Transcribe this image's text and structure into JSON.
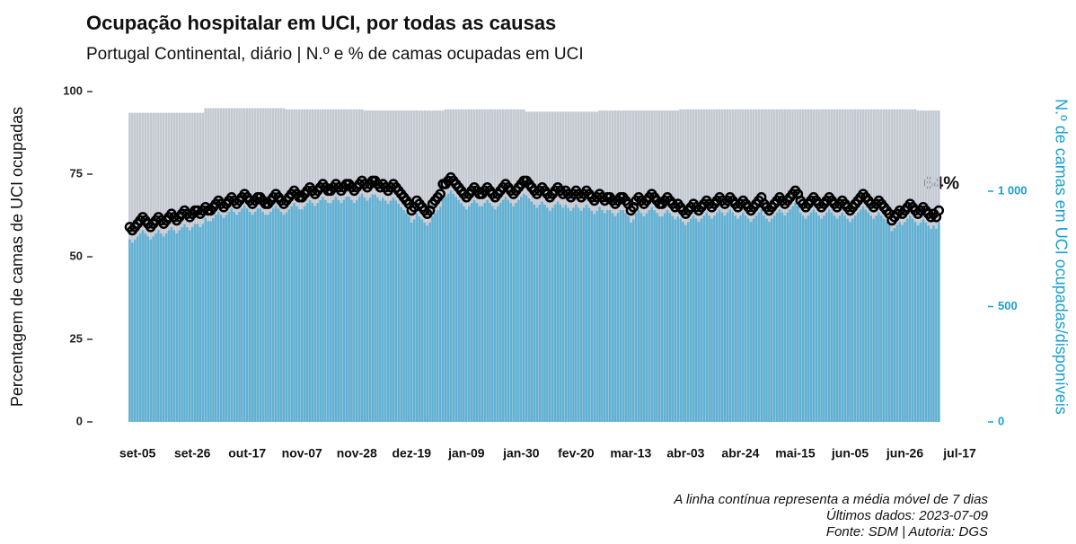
{
  "chart_data": {
    "type": "bar",
    "title": "Ocupação hospitalar em UCI, por todas as causas",
    "subtitle": "Portugal Continental, diário | N.º e % de camas ocupadas em UCI",
    "y_label": "Percentagem de camas de UCI ocupadas",
    "y2_label": "N.º de camas em UCI ocupadas/disponíveis",
    "annotation": "64%",
    "notes": [
      "A linha contínua representa a média móvel de 7 dias",
      "Últimos dados: 2023-07-09",
      "Fonte: SDM | Autoria: DGS"
    ],
    "ylim": [
      0,
      100
    ],
    "yticks": [
      0,
      25,
      50,
      75,
      100
    ],
    "y2lim": [
      0,
      1432
    ],
    "y2ticks": [
      0,
      500,
      {
        "value": 1000,
        "label": "1 000"
      }
    ],
    "categories": [
      null,
      null,
      null,
      "set-05",
      null,
      null,
      null,
      null,
      null,
      null,
      null,
      null,
      null,
      null,
      null,
      null,
      null,
      null,
      null,
      null,
      null,
      null,
      null,
      null,
      "set-26",
      null,
      null,
      null,
      null,
      null,
      null,
      null,
      null,
      null,
      null,
      null,
      null,
      null,
      null,
      null,
      null,
      null,
      null,
      null,
      null,
      "out-17",
      null,
      null,
      null,
      null,
      null,
      null,
      null,
      null,
      null,
      null,
      null,
      null,
      null,
      null,
      null,
      null,
      null,
      null,
      null,
      null,
      "nov-07",
      null,
      null,
      null,
      null,
      null,
      null,
      null,
      null,
      null,
      null,
      null,
      null,
      null,
      null,
      null,
      null,
      null,
      null,
      null,
      null,
      "nov-28",
      null,
      null,
      null,
      null,
      null,
      null,
      null,
      null,
      null,
      null,
      null,
      null,
      null,
      null,
      null,
      null,
      null,
      null,
      null,
      null,
      "dez-19",
      null,
      null,
      null,
      null,
      null,
      null,
      null,
      null,
      null,
      null,
      null,
      null,
      null,
      null,
      null,
      null,
      null,
      null,
      null,
      null,
      "jan-09",
      null,
      null,
      null,
      null,
      null,
      null,
      null,
      null,
      null,
      null,
      null,
      null,
      null,
      null,
      null,
      null,
      null,
      null,
      null,
      null,
      "jan-30",
      null,
      null,
      null,
      null,
      null,
      null,
      null,
      null,
      null,
      null,
      null,
      null,
      null,
      null,
      null,
      null,
      null,
      null,
      null,
      null,
      "fev-20",
      null,
      null,
      null,
      null,
      null,
      null,
      null,
      null,
      null,
      null,
      null,
      null,
      null,
      null,
      null,
      null,
      null,
      null,
      null,
      null,
      "mar-13",
      null,
      null,
      null,
      null,
      null,
      null,
      null,
      null,
      null,
      null,
      null,
      null,
      null,
      null,
      null,
      null,
      null,
      null,
      null,
      null,
      "abr-03",
      null,
      null,
      null,
      null,
      null,
      null,
      null,
      null,
      null,
      null,
      null,
      null,
      null,
      null,
      null,
      null,
      null,
      null,
      null,
      null,
      "abr-24",
      null,
      null,
      null,
      null,
      null,
      null,
      null,
      null,
      null,
      null,
      null,
      null,
      null,
      null,
      null,
      null,
      null,
      null,
      null,
      null,
      "mai-15",
      null,
      null,
      null,
      null,
      null,
      null,
      null,
      null,
      null,
      null,
      null,
      null,
      null,
      null,
      null,
      null,
      null,
      null,
      null,
      null,
      "jun-05",
      null,
      null,
      null,
      null,
      null,
      null,
      null,
      null,
      null,
      null,
      null,
      null,
      null,
      null,
      null,
      null,
      null,
      null,
      null,
      null,
      "jun-26",
      null,
      null,
      null,
      null,
      null,
      null,
      null,
      null,
      null,
      null,
      null,
      null,
      null,
      null,
      null,
      null,
      null,
      null,
      null,
      null,
      "jul-17"
    ],
    "series": [
      {
        "axis": "y2",
        "color": "#c4c8d1",
        "values": [
          1340,
          1340,
          1340,
          1340,
          1340,
          1340,
          1340,
          1340,
          1340,
          1340,
          1340,
          1340,
          1340,
          1340,
          1340,
          1340,
          1340,
          1340,
          1340,
          1340,
          1340,
          1340,
          1340,
          1340,
          1340,
          1340,
          1340,
          1340,
          1340,
          1360,
          1360,
          1360,
          1360,
          1360,
          1360,
          1360,
          1360,
          1360,
          1360,
          1360,
          1360,
          1360,
          1360,
          1360,
          1360,
          1360,
          1360,
          1360,
          1360,
          1360,
          1360,
          1360,
          1360,
          1360,
          1360,
          1360,
          1360,
          1360,
          1360,
          1360,
          1355,
          1355,
          1355,
          1355,
          1355,
          1355,
          1355,
          1355,
          1355,
          1355,
          1355,
          1355,
          1355,
          1355,
          1355,
          1355,
          1355,
          1355,
          1355,
          1355,
          1355,
          1355,
          1355,
          1355,
          1355,
          1355,
          1355,
          1355,
          1355,
          1355,
          1350,
          1350,
          1350,
          1350,
          1350,
          1350,
          1350,
          1350,
          1350,
          1350,
          1350,
          1350,
          1350,
          1350,
          1350,
          1350,
          1350,
          1350,
          1350,
          1350,
          1350,
          1350,
          1350,
          1350,
          1350,
          1350,
          1350,
          1350,
          1350,
          1350,
          1350,
          1355,
          1355,
          1355,
          1355,
          1355,
          1355,
          1355,
          1355,
          1355,
          1355,
          1355,
          1355,
          1355,
          1355,
          1355,
          1355,
          1355,
          1355,
          1355,
          1355,
          1355,
          1355,
          1355,
          1355,
          1355,
          1355,
          1355,
          1355,
          1355,
          1355,
          1355,
          1345,
          1345,
          1345,
          1345,
          1345,
          1345,
          1345,
          1345,
          1345,
          1345,
          1345,
          1345,
          1345,
          1345,
          1345,
          1345,
          1345,
          1345,
          1345,
          1345,
          1345,
          1345,
          1345,
          1345,
          1345,
          1345,
          1345,
          1345,
          1350,
          1350,
          1350,
          1350,
          1350,
          1350,
          1350,
          1350,
          1350,
          1350,
          1350,
          1350,
          1350,
          1350,
          1350,
          1350,
          1350,
          1350,
          1350,
          1350,
          1350,
          1350,
          1350,
          1350,
          1350,
          1350,
          1350,
          1350,
          1350,
          1350,
          1350,
          1355,
          1355,
          1355,
          1355,
          1355,
          1355,
          1355,
          1355,
          1355,
          1355,
          1355,
          1355,
          1355,
          1355,
          1355,
          1355,
          1355,
          1355,
          1355,
          1355,
          1355,
          1355,
          1355,
          1355,
          1355,
          1355,
          1355,
          1355,
          1355,
          1355,
          1355,
          1355,
          1355,
          1355,
          1355,
          1355,
          1355,
          1355,
          1355,
          1355,
          1355,
          1355,
          1355,
          1355,
          1355,
          1355,
          1355,
          1355,
          1355,
          1355,
          1355,
          1355,
          1355,
          1355,
          1355,
          1355,
          1355,
          1355,
          1355,
          1355,
          1355,
          1355,
          1355,
          1355,
          1355,
          1355,
          1355,
          1355,
          1355,
          1355,
          1355,
          1355,
          1355,
          1355,
          1355,
          1355,
          1355,
          1355,
          1355,
          1355,
          1355,
          1355,
          1355,
          1355,
          1355,
          1355,
          1355,
          1355,
          1355,
          1355,
          1355,
          1350,
          1350,
          1350,
          1350,
          1350,
          1350,
          1350,
          1350,
          1350,
          null,
          null,
          null,
          null,
          null,
          null,
          null,
          null
        ]
      },
      {
        "axis": "y2",
        "color": "#62b1d3",
        "values": [
          791,
          777,
          791,
          804,
          817,
          831,
          817,
          804,
          791,
          804,
          817,
          831,
          817,
          804,
          817,
          831,
          844,
          831,
          817,
          831,
          844,
          858,
          844,
          831,
          844,
          858,
          858,
          844,
          858,
          884,
          870,
          870,
          884,
          898,
          911,
          898,
          884,
          898,
          911,
          925,
          911,
          898,
          911,
          925,
          938,
          925,
          911,
          898,
          911,
          925,
          925,
          911,
          898,
          898,
          911,
          925,
          938,
          925,
          911,
          898,
          908,
          921,
          935,
          949,
          935,
          921,
          921,
          935,
          949,
          962,
          949,
          935,
          949,
          962,
          976,
          962,
          949,
          949,
          962,
          976,
          962,
          949,
          962,
          976,
          976,
          962,
          949,
          962,
          976,
          989,
          972,
          959,
          972,
          986,
          986,
          972,
          959,
          972,
          959,
          945,
          959,
          972,
          959,
          945,
          932,
          918,
          905,
          891,
          864,
          878,
          905,
          891,
          878,
          864,
          851,
          864,
          891,
          905,
          918,
          932,
          972,
          976,
          989,
          1003,
          989,
          976,
          962,
          949,
          935,
          921,
          935,
          949,
          962,
          949,
          935,
          935,
          949,
          962,
          949,
          935,
          921,
          935,
          949,
          962,
          976,
          962,
          949,
          935,
          949,
          962,
          976,
          989,
          982,
          968,
          955,
          942,
          928,
          942,
          955,
          942,
          928,
          915,
          928,
          942,
          955,
          942,
          928,
          942,
          928,
          915,
          928,
          942,
          928,
          915,
          928,
          942,
          928,
          915,
          901,
          915,
          932,
          918,
          905,
          918,
          918,
          905,
          891,
          905,
          918,
          918,
          905,
          891,
          864,
          878,
          905,
          918,
          905,
          891,
          905,
          918,
          932,
          918,
          905,
          891,
          891,
          905,
          918,
          905,
          891,
          878,
          891,
          881,
          867,
          854,
          867,
          881,
          894,
          881,
          867,
          881,
          894,
          908,
          894,
          881,
          894,
          908,
          921,
          908,
          894,
          908,
          921,
          908,
          894,
          881,
          894,
          908,
          894,
          881,
          867,
          881,
          894,
          908,
          921,
          894,
          881,
          867,
          881,
          894,
          908,
          921,
          908,
          894,
          908,
          921,
          935,
          949,
          935,
          908,
          894,
          881,
          894,
          908,
          921,
          908,
          894,
          881,
          894,
          908,
          921,
          908,
          894,
          881,
          894,
          908,
          894,
          881,
          867,
          881,
          894,
          908,
          921,
          935,
          921,
          908,
          894,
          881,
          894,
          908,
          894,
          881,
          867,
          854,
          827,
          840,
          854,
          867,
          854,
          867,
          881,
          894,
          881,
          867,
          851,
          864,
          878,
          864,
          851,
          837,
          851,
          837,
          864,
          null,
          null,
          null,
          null,
          null,
          null,
          null,
          null
        ]
      },
      {
        "type": "scatter",
        "color": "#000000",
        "values": [
          59,
          58,
          59,
          60,
          61,
          62,
          61,
          60,
          59,
          60,
          61,
          62,
          61,
          60,
          61,
          62,
          63,
          62,
          61,
          62,
          63,
          64,
          63,
          62,
          63,
          64,
          64,
          63,
          64,
          65,
          64,
          64,
          65,
          66,
          67,
          66,
          65,
          66,
          67,
          68,
          67,
          66,
          67,
          68,
          69,
          68,
          67,
          66,
          67,
          68,
          68,
          67,
          66,
          66,
          67,
          68,
          69,
          68,
          67,
          66,
          67,
          68,
          69,
          70,
          69,
          68,
          68,
          69,
          70,
          71,
          70,
          69,
          70,
          71,
          72,
          71,
          70,
          70,
          71,
          72,
          71,
          70,
          71,
          72,
          72,
          71,
          70,
          71,
          72,
          73,
          72,
          71,
          72,
          73,
          73,
          72,
          71,
          72,
          71,
          70,
          71,
          72,
          71,
          70,
          69,
          68,
          67,
          66,
          64,
          65,
          67,
          66,
          65,
          64,
          63,
          64,
          66,
          67,
          68,
          69,
          72,
          72,
          73,
          74,
          73,
          72,
          71,
          70,
          69,
          68,
          69,
          70,
          71,
          70,
          69,
          69,
          70,
          71,
          70,
          69,
          68,
          69,
          70,
          71,
          72,
          71,
          70,
          69,
          70,
          71,
          72,
          73,
          73,
          72,
          71,
          70,
          69,
          70,
          71,
          70,
          69,
          68,
          69,
          70,
          71,
          70,
          69,
          70,
          69,
          68,
          69,
          70,
          69,
          68,
          69,
          70,
          69,
          68,
          67,
          68,
          69,
          68,
          67,
          68,
          68,
          67,
          66,
          67,
          68,
          68,
          67,
          66,
          64,
          65,
          67,
          68,
          67,
          66,
          67,
          68,
          69,
          68,
          67,
          66,
          66,
          67,
          68,
          67,
          66,
          65,
          66,
          65,
          64,
          63,
          64,
          65,
          66,
          65,
          64,
          65,
          66,
          67,
          66,
          65,
          66,
          67,
          68,
          67,
          66,
          67,
          68,
          67,
          66,
          65,
          66,
          67,
          66,
          65,
          64,
          65,
          66,
          67,
          68,
          66,
          65,
          64,
          65,
          66,
          67,
          68,
          67,
          66,
          67,
          68,
          69,
          70,
          69,
          67,
          66,
          65,
          66,
          67,
          68,
          67,
          66,
          65,
          66,
          67,
          68,
          67,
          66,
          65,
          66,
          67,
          66,
          65,
          64,
          65,
          66,
          67,
          68,
          69,
          68,
          67,
          66,
          65,
          66,
          67,
          66,
          65,
          64,
          63,
          61,
          62,
          63,
          64,
          63,
          64,
          65,
          66,
          65,
          64,
          63,
          64,
          65,
          64,
          63,
          62,
          63,
          62,
          64,
          null,
          null,
          null,
          null,
          null,
          null,
          null,
          null
        ]
      }
    ]
  }
}
